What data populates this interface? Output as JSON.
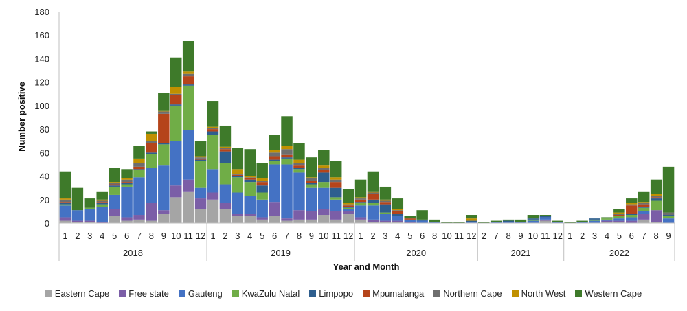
{
  "chart_data": {
    "type": "bar",
    "stacked": true,
    "ylabel": "Number positive",
    "xlabel": "Year and Month",
    "ylim": [
      0,
      180
    ],
    "yticks": [
      0,
      20,
      40,
      60,
      80,
      100,
      120,
      140,
      160,
      180
    ],
    "grid": false,
    "legend_position": "bottom",
    "years": [
      {
        "label": "2018",
        "months": [
          "1",
          "2",
          "3",
          "4",
          "5",
          "6",
          "7",
          "8",
          "9",
          "10",
          "11",
          "12"
        ]
      },
      {
        "label": "2019",
        "months": [
          "1",
          "2",
          "3",
          "4",
          "5",
          "6",
          "7",
          "8",
          "9",
          "10",
          "11",
          "12"
        ]
      },
      {
        "label": "2020",
        "months": [
          "1",
          "2",
          "3",
          "4",
          "5",
          "6",
          "8",
          "10",
          "11",
          "12"
        ]
      },
      {
        "label": "2021",
        "months": [
          "2",
          "7",
          "8",
          "9",
          "10",
          "11",
          "12"
        ]
      },
      {
        "label": "2022",
        "months": [
          "1",
          "2",
          "3",
          "4",
          "5",
          "6",
          "7",
          "8",
          "9"
        ]
      }
    ],
    "series": [
      {
        "name": "Eastern Cape",
        "color": "#a5a5a5",
        "values": [
          2,
          1,
          1,
          0,
          6,
          2,
          3,
          2,
          8,
          22,
          27,
          12,
          20,
          12,
          6,
          6,
          3,
          6,
          2,
          3,
          3,
          7,
          3,
          8,
          3,
          1,
          1,
          1,
          0,
          0,
          0,
          0,
          0,
          0,
          0,
          0,
          0,
          0,
          0,
          2,
          0,
          0,
          0,
          0,
          1,
          1,
          0,
          3,
          1,
          0
        ]
      },
      {
        "name": "Free state",
        "color": "#7b5ea7",
        "values": [
          3,
          1,
          1,
          1,
          6,
          3,
          4,
          15,
          3,
          10,
          10,
          9,
          6,
          5,
          2,
          2,
          2,
          12,
          2,
          8,
          7,
          5,
          7,
          2,
          2,
          2,
          1,
          1,
          1,
          0,
          0,
          0,
          0,
          0,
          0,
          0,
          0,
          0,
          0,
          1,
          0,
          0,
          0,
          0,
          1,
          1,
          2,
          5,
          10,
          0
        ]
      },
      {
        "name": "Gauteng",
        "color": "#4472c4",
        "values": [
          10,
          9,
          10,
          13,
          12,
          26,
          32,
          30,
          38,
          38,
          42,
          9,
          20,
          16,
          18,
          15,
          15,
          32,
          46,
          32,
          20,
          18,
          10,
          2,
          10,
          12,
          6,
          4,
          2,
          2,
          1,
          0,
          0,
          1,
          0,
          1,
          1,
          1,
          2,
          2,
          1,
          0,
          1,
          2,
          1,
          2,
          3,
          2,
          0,
          4
        ]
      },
      {
        "name": "KwaZulu Natal",
        "color": "#70ad47",
        "values": [
          1,
          0,
          1,
          2,
          7,
          2,
          6,
          12,
          18,
          30,
          38,
          23,
          29,
          18,
          13,
          12,
          6,
          3,
          5,
          3,
          3,
          5,
          2,
          1,
          2,
          2,
          1,
          0,
          0,
          0,
          0,
          0,
          0,
          0,
          0,
          0,
          0,
          0,
          1,
          0,
          0,
          0,
          0,
          1,
          1,
          2,
          2,
          3,
          8,
          2
        ]
      },
      {
        "name": "Limpopo",
        "color": "#2e5e8e",
        "values": [
          1,
          0,
          0,
          1,
          1,
          1,
          1,
          1,
          1,
          1,
          1,
          1,
          3,
          10,
          1,
          2,
          6,
          1,
          1,
          1,
          1,
          8,
          8,
          1,
          1,
          3,
          7,
          2,
          0,
          1,
          0,
          0,
          0,
          1,
          0,
          0,
          1,
          0,
          1,
          1,
          0,
          0,
          0,
          1,
          0,
          0,
          1,
          1,
          2,
          1
        ]
      },
      {
        "name": "Mpumalanga",
        "color": "#b5441a",
        "values": [
          1,
          0,
          0,
          1,
          1,
          1,
          2,
          8,
          25,
          8,
          7,
          1,
          2,
          2,
          1,
          1,
          3,
          3,
          2,
          2,
          2,
          2,
          5,
          1,
          2,
          5,
          2,
          2,
          1,
          0,
          0,
          0,
          0,
          0,
          0,
          0,
          0,
          0,
          0,
          0,
          0,
          0,
          0,
          0,
          0,
          1,
          7,
          2,
          1,
          0
        ]
      },
      {
        "name": "Northern Cape",
        "color": "#6e6e6e",
        "values": [
          2,
          0,
          0,
          1,
          1,
          2,
          3,
          2,
          2,
          1,
          2,
          1,
          1,
          1,
          1,
          1,
          1,
          3,
          5,
          2,
          2,
          2,
          2,
          1,
          1,
          1,
          1,
          1,
          0,
          0,
          0,
          0,
          0,
          0,
          0,
          0,
          0,
          0,
          0,
          0,
          0,
          0,
          0,
          0,
          0,
          1,
          1,
          1,
          1,
          2
        ]
      },
      {
        "name": "North West",
        "color": "#c09000",
        "values": [
          1,
          0,
          0,
          1,
          1,
          1,
          4,
          6,
          1,
          6,
          2,
          1,
          1,
          1,
          4,
          1,
          2,
          2,
          3,
          3,
          1,
          2,
          2,
          1,
          1,
          1,
          1,
          1,
          0,
          0,
          0,
          0,
          0,
          2,
          0,
          0,
          0,
          0,
          0,
          0,
          0,
          0,
          0,
          0,
          0,
          1,
          1,
          1,
          2,
          0
        ]
      },
      {
        "name": "Western Cape",
        "color": "#3e7a2a",
        "values": [
          23,
          19,
          8,
          7,
          12,
          8,
          11,
          2,
          15,
          25,
          26,
          13,
          22,
          18,
          18,
          23,
          13,
          13,
          25,
          14,
          17,
          13,
          14,
          12,
          15,
          17,
          11,
          9,
          2,
          8,
          2,
          1,
          1,
          3,
          1,
          1,
          1,
          2,
          3,
          1,
          1,
          1,
          1,
          0,
          1,
          3,
          4,
          9,
          12,
          39
        ]
      }
    ]
  },
  "legend_entries": [
    "Eastern Cape",
    "Free state",
    "Gauteng",
    "KwaZulu Natal",
    "Limpopo",
    "Mpumalanga",
    "Northern Cape",
    "North West",
    "Western Cape"
  ]
}
